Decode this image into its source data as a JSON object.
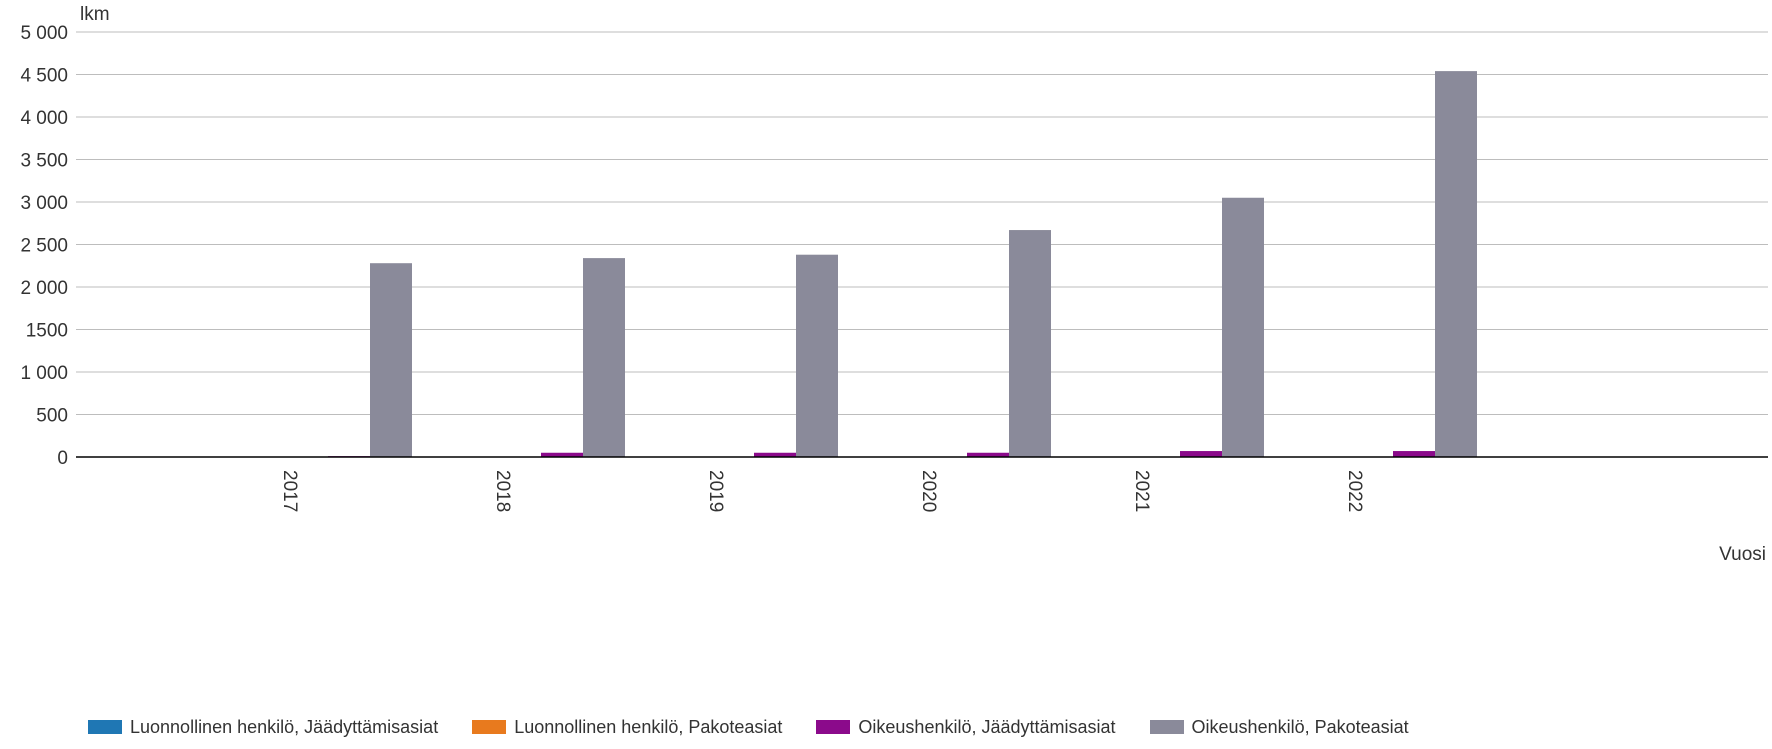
{
  "chart_data": {
    "type": "bar",
    "ylabel": "lkm",
    "xlabel": "Vuosi",
    "ylim": [
      0,
      5000
    ],
    "yticks": [
      0,
      500,
      1000,
      1500,
      2000,
      2500,
      3000,
      3500,
      4000,
      4500,
      5000
    ],
    "ytick_labels": [
      "0",
      "500",
      "1 000",
      "1500",
      "2 000",
      "2 500",
      "3 000",
      "3 500",
      "4 000",
      "4 500",
      "5 000"
    ],
    "grid": true,
    "legend_position": "bottom",
    "categories": [
      "2017",
      "2018",
      "2019",
      "2020",
      "2021",
      "2022"
    ],
    "series": [
      {
        "name": "Luonnollinen henkilö, Jäädyttämisasiat",
        "color": "#1f77b4",
        "values": [
          0,
          0,
          0,
          0,
          0,
          0
        ]
      },
      {
        "name": "Luonnollinen henkilö, Pakoteasiat",
        "color": "#e87a1e",
        "values": [
          0,
          0,
          0,
          0,
          0,
          0
        ]
      },
      {
        "name": "Oikeushenkilö, Jäädyttämisasiat",
        "color": "#8b0a8b",
        "values": [
          10,
          50,
          50,
          50,
          70,
          70
        ]
      },
      {
        "name": "Oikeushenkilö, Pakoteasiat",
        "color": "#8a8a9a",
        "values": [
          2280,
          2340,
          2380,
          2670,
          3050,
          4540
        ]
      }
    ]
  }
}
